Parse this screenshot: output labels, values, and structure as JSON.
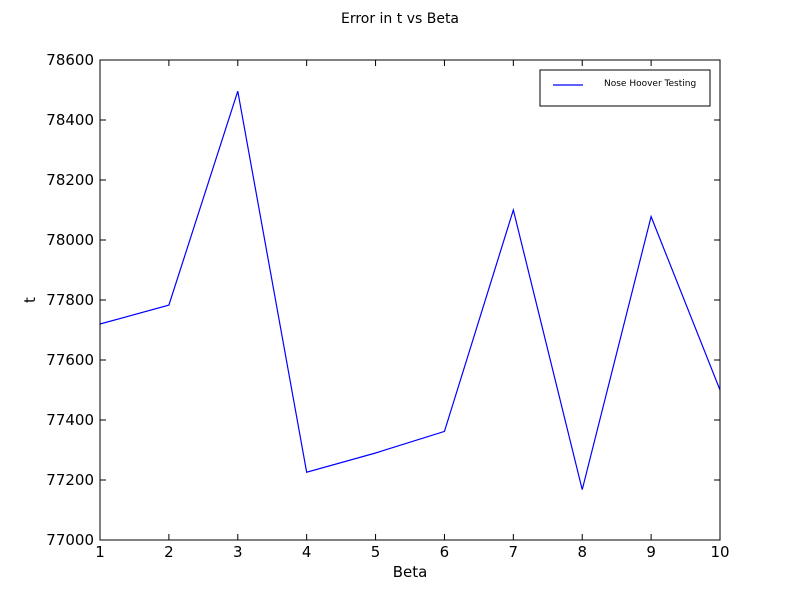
{
  "chart_data": {
    "type": "line",
    "title": "Error in t vs Beta",
    "xlabel": "Beta",
    "ylabel": "t",
    "xlim": [
      1,
      10
    ],
    "ylim": [
      77000,
      78600
    ],
    "xticks": [
      1,
      2,
      3,
      4,
      5,
      6,
      7,
      8,
      9,
      10
    ],
    "yticks": [
      77000,
      77200,
      77400,
      77600,
      77800,
      78000,
      78200,
      78400,
      78600
    ],
    "grid": false,
    "legend": "top-right",
    "series": [
      {
        "name": "Nose Hoover Testing",
        "color": "#0000ff",
        "x": [
          1,
          2,
          3,
          4,
          5,
          6,
          7,
          8,
          9,
          10
        ],
        "y": [
          77720,
          77783,
          78496,
          77226,
          77290,
          77362,
          78100,
          77168,
          78078,
          77500
        ]
      }
    ]
  }
}
